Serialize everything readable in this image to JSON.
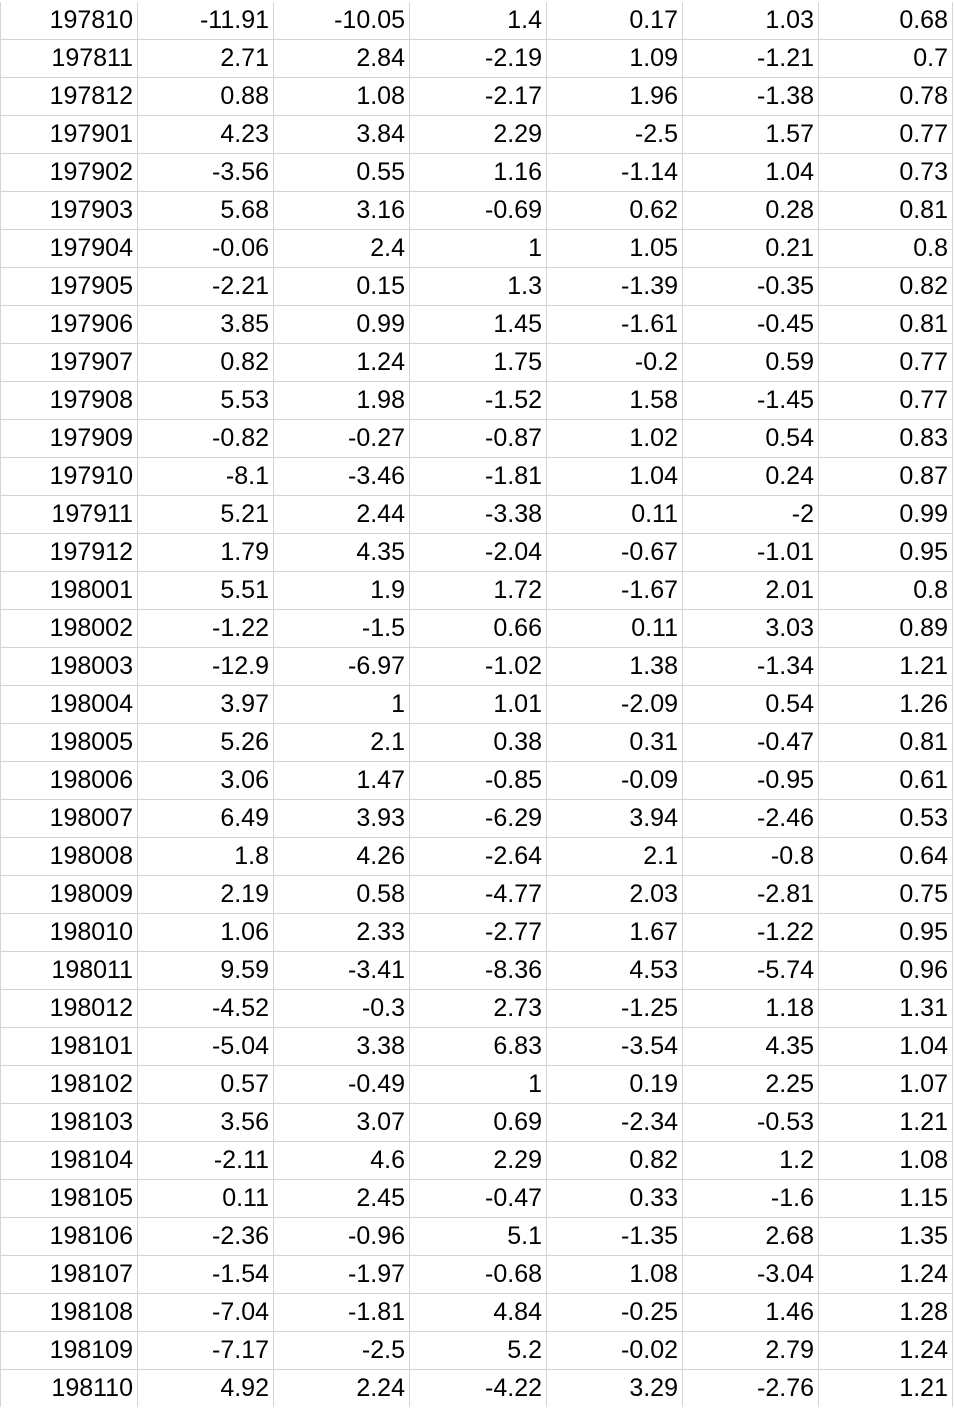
{
  "sheet": {
    "rows": [
      [
        "197810",
        "-11.91",
        "-10.05",
        "1.4",
        "0.17",
        "1.03",
        "0.68"
      ],
      [
        "197811",
        "2.71",
        "2.84",
        "-2.19",
        "1.09",
        "-1.21",
        "0.7"
      ],
      [
        "197812",
        "0.88",
        "1.08",
        "-2.17",
        "1.96",
        "-1.38",
        "0.78"
      ],
      [
        "197901",
        "4.23",
        "3.84",
        "2.29",
        "-2.5",
        "1.57",
        "0.77"
      ],
      [
        "197902",
        "-3.56",
        "0.55",
        "1.16",
        "-1.14",
        "1.04",
        "0.73"
      ],
      [
        "197903",
        "5.68",
        "3.16",
        "-0.69",
        "0.62",
        "0.28",
        "0.81"
      ],
      [
        "197904",
        "-0.06",
        "2.4",
        "1",
        "1.05",
        "0.21",
        "0.8"
      ],
      [
        "197905",
        "-2.21",
        "0.15",
        "1.3",
        "-1.39",
        "-0.35",
        "0.82"
      ],
      [
        "197906",
        "3.85",
        "0.99",
        "1.45",
        "-1.61",
        "-0.45",
        "0.81"
      ],
      [
        "197907",
        "0.82",
        "1.24",
        "1.75",
        "-0.2",
        "0.59",
        "0.77"
      ],
      [
        "197908",
        "5.53",
        "1.98",
        "-1.52",
        "1.58",
        "-1.45",
        "0.77"
      ],
      [
        "197909",
        "-0.82",
        "-0.27",
        "-0.87",
        "1.02",
        "0.54",
        "0.83"
      ],
      [
        "197910",
        "-8.1",
        "-3.46",
        "-1.81",
        "1.04",
        "0.24",
        "0.87"
      ],
      [
        "197911",
        "5.21",
        "2.44",
        "-3.38",
        "0.11",
        "-2",
        "0.99"
      ],
      [
        "197912",
        "1.79",
        "4.35",
        "-2.04",
        "-0.67",
        "-1.01",
        "0.95"
      ],
      [
        "198001",
        "5.51",
        "1.9",
        "1.72",
        "-1.67",
        "2.01",
        "0.8"
      ],
      [
        "198002",
        "-1.22",
        "-1.5",
        "0.66",
        "0.11",
        "3.03",
        "0.89"
      ],
      [
        "198003",
        "-12.9",
        "-6.97",
        "-1.02",
        "1.38",
        "-1.34",
        "1.21"
      ],
      [
        "198004",
        "3.97",
        "1",
        "1.01",
        "-2.09",
        "0.54",
        "1.26"
      ],
      [
        "198005",
        "5.26",
        "2.1",
        "0.38",
        "0.31",
        "-0.47",
        "0.81"
      ],
      [
        "198006",
        "3.06",
        "1.47",
        "-0.85",
        "-0.09",
        "-0.95",
        "0.61"
      ],
      [
        "198007",
        "6.49",
        "3.93",
        "-6.29",
        "3.94",
        "-2.46",
        "0.53"
      ],
      [
        "198008",
        "1.8",
        "4.26",
        "-2.64",
        "2.1",
        "-0.8",
        "0.64"
      ],
      [
        "198009",
        "2.19",
        "0.58",
        "-4.77",
        "2.03",
        "-2.81",
        "0.75"
      ],
      [
        "198010",
        "1.06",
        "2.33",
        "-2.77",
        "1.67",
        "-1.22",
        "0.95"
      ],
      [
        "198011",
        "9.59",
        "-3.41",
        "-8.36",
        "4.53",
        "-5.74",
        "0.96"
      ],
      [
        "198012",
        "-4.52",
        "-0.3",
        "2.73",
        "-1.25",
        "1.18",
        "1.31"
      ],
      [
        "198101",
        "-5.04",
        "3.38",
        "6.83",
        "-3.54",
        "4.35",
        "1.04"
      ],
      [
        "198102",
        "0.57",
        "-0.49",
        "1",
        "0.19",
        "2.25",
        "1.07"
      ],
      [
        "198103",
        "3.56",
        "3.07",
        "0.69",
        "-2.34",
        "-0.53",
        "1.21"
      ],
      [
        "198104",
        "-2.11",
        "4.6",
        "2.29",
        "0.82",
        "1.2",
        "1.08"
      ],
      [
        "198105",
        "0.11",
        "2.45",
        "-0.47",
        "0.33",
        "-1.6",
        "1.15"
      ],
      [
        "198106",
        "-2.36",
        "-0.96",
        "5.1",
        "-1.35",
        "2.68",
        "1.35"
      ],
      [
        "198107",
        "-1.54",
        "-1.97",
        "-0.68",
        "1.08",
        "-3.04",
        "1.24"
      ],
      [
        "198108",
        "-7.04",
        "-1.81",
        "4.84",
        "-0.25",
        "1.46",
        "1.28"
      ],
      [
        "198109",
        "-7.17",
        "-2.5",
        "5.2",
        "-0.02",
        "2.79",
        "1.24"
      ],
      [
        "198110",
        "4.92",
        "2.24",
        "-4.22",
        "3.29",
        "-2.76",
        "1.21"
      ]
    ]
  }
}
